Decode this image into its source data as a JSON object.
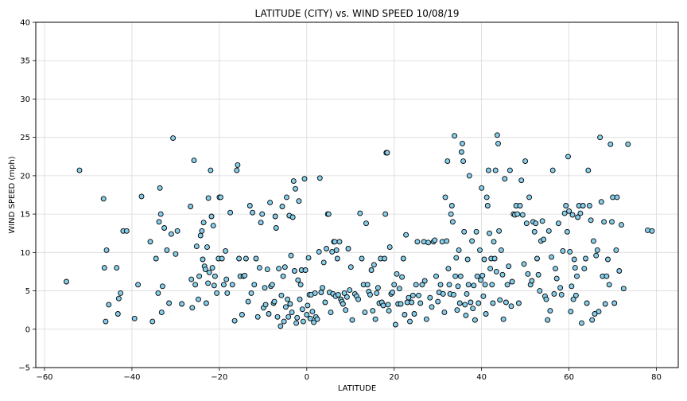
{
  "chart_data": {
    "type": "scatter",
    "title": "LATITUDE (CITY) vs. WIND SPEED 10/08/19",
    "xlabel": "LATITUDE",
    "ylabel": "WIND SPEED (mph)",
    "xlim": [
      -62,
      85
    ],
    "ylim": [
      -5,
      40
    ],
    "xticks": [
      -60,
      -40,
      -20,
      0,
      20,
      40,
      60,
      80
    ],
    "yticks": [
      -5,
      0,
      5,
      10,
      15,
      20,
      25,
      30,
      35,
      40
    ],
    "grid": true,
    "marker_fill": "#87ceeb",
    "marker_edge": "#000000",
    "points": [
      [
        -55,
        6.2
      ],
      [
        -52,
        20.7
      ],
      [
        -46.5,
        17
      ],
      [
        -46.3,
        8
      ],
      [
        -46,
        1
      ],
      [
        -45.8,
        10.3
      ],
      [
        -45.3,
        3.2
      ],
      [
        -43.5,
        8
      ],
      [
        -43.2,
        2
      ],
      [
        -43,
        4
      ],
      [
        -42.6,
        4.7
      ],
      [
        -42,
        12.8
      ],
      [
        -41.2,
        12.8
      ],
      [
        -39.4,
        1.4
      ],
      [
        -38.6,
        5.8
      ],
      [
        -37.8,
        17.3
      ],
      [
        -35.8,
        11.4
      ],
      [
        -35.3,
        1
      ],
      [
        -34.5,
        9.2
      ],
      [
        -34,
        4.7
      ],
      [
        -33.8,
        14
      ],
      [
        -33.6,
        18.4
      ],
      [
        -33.4,
        15
      ],
      [
        -33.2,
        2.2
      ],
      [
        -33,
        5.6
      ],
      [
        -32.6,
        13.2
      ],
      [
        -32,
        10.3
      ],
      [
        -31.5,
        3.4
      ],
      [
        -31,
        12.4
      ],
      [
        -30.6,
        24.9
      ],
      [
        -30,
        9.8
      ],
      [
        -29.6,
        12.8
      ],
      [
        -28.6,
        3.3
      ],
      [
        -26.6,
        16
      ],
      [
        -26.4,
        6.5
      ],
      [
        -26.2,
        2.8
      ],
      [
        -25.8,
        22
      ],
      [
        -25.5,
        5.8
      ],
      [
        -25.2,
        10.8
      ],
      [
        -24.8,
        3.9
      ],
      [
        -24.6,
        6.9
      ],
      [
        -24.3,
        12.2
      ],
      [
        -24,
        12.8
      ],
      [
        -23.8,
        9.1
      ],
      [
        -23.6,
        13.9
      ],
      [
        -23.4,
        8.2
      ],
      [
        -23.2,
        7.8
      ],
      [
        -23,
        3.4
      ],
      [
        -22.8,
        10.7
      ],
      [
        -22.6,
        6
      ],
      [
        -22.5,
        17.1
      ],
      [
        -22.3,
        7.4
      ],
      [
        -22,
        20.7
      ],
      [
        -21.8,
        14.7
      ],
      [
        -21.6,
        8
      ],
      [
        -21.4,
        13.5
      ],
      [
        -21.2,
        5.7
      ],
      [
        -21,
        6.9
      ],
      [
        -20.6,
        4.7
      ],
      [
        -20.2,
        9.2
      ],
      [
        -20,
        17.2
      ],
      [
        -19.7,
        17.2
      ],
      [
        -19.4,
        9.2
      ],
      [
        -19,
        5.8
      ],
      [
        -18.6,
        10.2
      ],
      [
        -18.4,
        6.5
      ],
      [
        -18.2,
        4.7
      ],
      [
        -17.5,
        15.2
      ],
      [
        -17,
        5.8
      ],
      [
        -16.5,
        1.1
      ],
      [
        -16,
        20.7
      ],
      [
        -15.8,
        21.4
      ],
      [
        -15.5,
        9.2
      ],
      [
        -15.2,
        6.9
      ],
      [
        -14.8,
        1.9
      ],
      [
        -14.5,
        6.9
      ],
      [
        -14.2,
        7
      ],
      [
        -13.9,
        9.2
      ],
      [
        -13.4,
        3.6
      ],
      [
        -13,
        16.1
      ],
      [
        -12.7,
        4.7
      ],
      [
        -12.4,
        15.2
      ],
      [
        -12,
        5.8
      ],
      [
        -11.6,
        9.2
      ],
      [
        -11.2,
        1.6
      ],
      [
        -10.8,
        8
      ],
      [
        -10.5,
        13.9
      ],
      [
        -10.2,
        15
      ],
      [
        -9.9,
        2.8
      ],
      [
        -9.6,
        5.4
      ],
      [
        -9.4,
        3.2
      ],
      [
        -9,
        7.8
      ],
      [
        -8.7,
        2
      ],
      [
        -8.4,
        16.5
      ],
      [
        -8.2,
        5.6
      ],
      [
        -7.9,
        5.8
      ],
      [
        -7.6,
        3.4
      ],
      [
        -7.4,
        3.6
      ],
      [
        -7.2,
        14.7
      ],
      [
        -7,
        13.2
      ],
      [
        -6.7,
        1.6
      ],
      [
        -6.4,
        7.9
      ],
      [
        -6,
        0.4
      ],
      [
        -5.8,
        4.4
      ],
      [
        -5.6,
        16
      ],
      [
        -5.4,
        6.9
      ],
      [
        -5.2,
        1
      ],
      [
        -5,
        8.1
      ],
      [
        -4.8,
        2.9
      ],
      [
        -4.6,
        17.2
      ],
      [
        -4.4,
        3.9
      ],
      [
        -4.2,
        1.6
      ],
      [
        -4,
        14.8
      ],
      [
        -3.8,
        3.3
      ],
      [
        -3.6,
        9.6
      ],
      [
        -3.4,
        2.2
      ],
      [
        -3.2,
        14.6
      ],
      [
        -3,
        19.3
      ],
      [
        -2.8,
        7.6
      ],
      [
        -2.6,
        18.3
      ],
      [
        -2.4,
        0.8
      ],
      [
        -2.2,
        1.5
      ],
      [
        -2,
        6.4
      ],
      [
        -1.8,
        16.7
      ],
      [
        -1.6,
        3.9
      ],
      [
        -1.4,
        5.8
      ],
      [
        -1.2,
        7.7
      ],
      [
        -1,
        2.6
      ],
      [
        -0.8,
        1
      ],
      [
        -0.5,
        19.6
      ],
      [
        -0.3,
        7.7
      ],
      [
        0,
        1.9
      ],
      [
        0.2,
        3.1
      ],
      [
        0.4,
        9.3
      ],
      [
        0.6,
        4.5
      ],
      [
        0.8,
        1.4
      ],
      [
        1,
        4.5
      ],
      [
        1.3,
        2.3
      ],
      [
        1.6,
        0.9
      ],
      [
        1.9,
        4.7
      ],
      [
        2.1,
        1.6
      ],
      [
        2.4,
        1.3
      ],
      [
        2.8,
        10.1
      ],
      [
        3,
        19.7
      ],
      [
        3.3,
        4.8
      ],
      [
        3.6,
        5.4
      ],
      [
        3.9,
        8.7
      ],
      [
        4.2,
        3.5
      ],
      [
        4.5,
        10.5
      ],
      [
        4.8,
        15
      ],
      [
        5,
        15
      ],
      [
        5.2,
        4.8
      ],
      [
        5.5,
        2.2
      ],
      [
        5.8,
        10.1
      ],
      [
        6,
        4.6
      ],
      [
        6.2,
        11.4
      ],
      [
        6.4,
        11.4
      ],
      [
        6.6,
        4.3
      ],
      [
        6.8,
        10.3
      ],
      [
        7,
        9.2
      ],
      [
        7.2,
        4.5
      ],
      [
        7.5,
        11.4
      ],
      [
        7.8,
        3.9
      ],
      [
        8,
        3.6
      ],
      [
        8.3,
        3.3
      ],
      [
        8.6,
        4.7
      ],
      [
        8.9,
        2.5
      ],
      [
        9.2,
        4.2
      ],
      [
        9.5,
        10.5
      ],
      [
        9.8,
        5.1
      ],
      [
        10.1,
        8.1
      ],
      [
        10.4,
        1.2
      ],
      [
        11,
        4.6
      ],
      [
        11.4,
        4.3
      ],
      [
        11.8,
        3.9
      ],
      [
        12.2,
        15.1
      ],
      [
        12.6,
        9.2
      ],
      [
        13,
        5.8
      ],
      [
        13.3,
        2.2
      ],
      [
        13.6,
        13.8
      ],
      [
        13.9,
        5.8
      ],
      [
        14.2,
        4.9
      ],
      [
        14.5,
        4.5
      ],
      [
        14.8,
        7.7
      ],
      [
        15.1,
        2.4
      ],
      [
        15.4,
        8.4
      ],
      [
        15.7,
        1.3
      ],
      [
        16,
        4.7
      ],
      [
        16.3,
        5.4
      ],
      [
        16.6,
        3.4
      ],
      [
        16.9,
        9.2
      ],
      [
        17.2,
        3.5
      ],
      [
        17.5,
        3.1
      ],
      [
        17.8,
        9.2
      ],
      [
        18,
        15
      ],
      [
        18.2,
        23
      ],
      [
        18.4,
        23
      ],
      [
        18.6,
        3.2
      ],
      [
        18.8,
        2.4
      ],
      [
        19,
        10.7
      ],
      [
        19.3,
        4.6
      ],
      [
        19.6,
        4.8
      ],
      [
        20,
        5.8
      ],
      [
        20.3,
        0.6
      ],
      [
        20.6,
        7.2
      ],
      [
        20.9,
        3.3
      ],
      [
        21.2,
        5.3
      ],
      [
        21.5,
        3.3
      ],
      [
        21.8,
        6.8
      ],
      [
        22.1,
        9.2
      ],
      [
        22.4,
        1.9
      ],
      [
        22.7,
        12.3
      ],
      [
        23,
        3.5
      ],
      [
        23.3,
        4.1
      ],
      [
        23.6,
        1
      ],
      [
        24,
        3.5
      ],
      [
        24.3,
        4.4
      ],
      [
        24.6,
        2
      ],
      [
        25,
        5.8
      ],
      [
        25.3,
        11.4
      ],
      [
        25.6,
        4.4
      ],
      [
        26,
        3.4
      ],
      [
        26.4,
        5.8
      ],
      [
        26.8,
        11.4
      ],
      [
        27,
        6.3
      ],
      [
        27.4,
        1.3
      ],
      [
        27.8,
        11.3
      ],
      [
        28.2,
        4.1
      ],
      [
        28.6,
        2.9
      ],
      [
        29,
        11.4
      ],
      [
        29.3,
        11.6
      ],
      [
        29.6,
        6.9
      ],
      [
        30,
        3.6
      ],
      [
        30.3,
        4.8
      ],
      [
        30.6,
        5.8
      ],
      [
        31,
        11.4
      ],
      [
        31.2,
        4.6
      ],
      [
        31.5,
        2.2
      ],
      [
        31.7,
        17.2
      ],
      [
        32,
        11.5
      ],
      [
        32.2,
        21.9
      ],
      [
        32.4,
        7.9
      ],
      [
        32.6,
        5.8
      ],
      [
        32.8,
        4.6
      ],
      [
        33,
        15
      ],
      [
        33.2,
        16.1
      ],
      [
        33.4,
        14
      ],
      [
        33.6,
        4.5
      ],
      [
        33.8,
        25.2
      ],
      [
        34,
        6.9
      ],
      [
        34.2,
        9.3
      ],
      [
        34.4,
        2.5
      ],
      [
        34.6,
        5.6
      ],
      [
        34.8,
        10.3
      ],
      [
        35,
        3.4
      ],
      [
        35.2,
        6.9
      ],
      [
        35.4,
        23.1
      ],
      [
        35.6,
        24.2
      ],
      [
        35.8,
        21.9
      ],
      [
        36,
        12.7
      ],
      [
        36.2,
        3.2
      ],
      [
        36.4,
        1.8
      ],
      [
        36.6,
        4.6
      ],
      [
        36.8,
        9.1
      ],
      [
        37,
        5.8
      ],
      [
        37.2,
        20
      ],
      [
        37.5,
        3.5
      ],
      [
        37.8,
        11.5
      ],
      [
        38,
        2.7
      ],
      [
        38.2,
        5.7
      ],
      [
        38.5,
        1.2
      ],
      [
        38.8,
        12.7
      ],
      [
        39,
        6.9
      ],
      [
        39.3,
        3.4
      ],
      [
        39.6,
        10.3
      ],
      [
        39.8,
        6.4
      ],
      [
        40,
        18.4
      ],
      [
        40.2,
        7
      ],
      [
        40.4,
        4.3
      ],
      [
        40.6,
        9.1
      ],
      [
        40.8,
        5.8
      ],
      [
        41,
        2
      ],
      [
        41.2,
        17.2
      ],
      [
        41.4,
        16.1
      ],
      [
        41.6,
        20.7
      ],
      [
        41.8,
        12.5
      ],
      [
        42,
        7.9
      ],
      [
        42.2,
        9.2
      ],
      [
        42.4,
        5.8
      ],
      [
        42.6,
        3.4
      ],
      [
        42.8,
        11.4
      ],
      [
        43,
        9.2
      ],
      [
        43.2,
        20.7
      ],
      [
        43.4,
        7.5
      ],
      [
        43.6,
        25.3
      ],
      [
        43.8,
        24.2
      ],
      [
        44,
        12.8
      ],
      [
        44.2,
        3.8
      ],
      [
        44.5,
        10.3
      ],
      [
        44.8,
        7.1
      ],
      [
        45,
        1.3
      ],
      [
        45.3,
        19.6
      ],
      [
        45.6,
        3.5
      ],
      [
        45.9,
        5.8
      ],
      [
        46.2,
        8.2
      ],
      [
        46.5,
        20.7
      ],
      [
        46.8,
        3
      ],
      [
        47,
        6.2
      ],
      [
        47.3,
        15
      ],
      [
        47.6,
        14.9
      ],
      [
        47.9,
        16.1
      ],
      [
        48.2,
        15
      ],
      [
        48.5,
        3.4
      ],
      [
        48.8,
        16.1
      ],
      [
        49.1,
        19.4
      ],
      [
        49.4,
        14.9
      ],
      [
        49.7,
        8.5
      ],
      [
        50,
        21.9
      ],
      [
        50.3,
        13.8
      ],
      [
        50.6,
        7.2
      ],
      [
        50.9,
        17.2
      ],
      [
        51.2,
        5.8
      ],
      [
        51.5,
        6.3
      ],
      [
        51.8,
        14
      ],
      [
        52.1,
        12.7
      ],
      [
        52.4,
        13.8
      ],
      [
        52.7,
        9.2
      ],
      [
        53,
        7.1
      ],
      [
        53.3,
        5
      ],
      [
        53.6,
        11.5
      ],
      [
        53.9,
        14.1
      ],
      [
        54.2,
        11.7
      ],
      [
        54.5,
        4.3
      ],
      [
        54.8,
        3.9
      ],
      [
        55.1,
        1.2
      ],
      [
        55.4,
        12.8
      ],
      [
        55.7,
        2.4
      ],
      [
        56,
        9.4
      ],
      [
        56.3,
        20.7
      ],
      [
        56.6,
        4.6
      ],
      [
        56.9,
        7.9
      ],
      [
        57.2,
        6.6
      ],
      [
        57.6,
        13.8
      ],
      [
        58,
        5.4
      ],
      [
        58.3,
        4.5
      ],
      [
        58.6,
        10.2
      ],
      [
        59,
        15.1
      ],
      [
        59.3,
        16.1
      ],
      [
        59.6,
        12.7
      ],
      [
        59.8,
        22.5
      ],
      [
        60,
        15.4
      ],
      [
        60.2,
        10.1
      ],
      [
        60.4,
        2.3
      ],
      [
        60.6,
        5.6
      ],
      [
        60.8,
        14.9
      ],
      [
        61,
        3.9
      ],
      [
        61.2,
        9.1
      ],
      [
        61.4,
        8
      ],
      [
        61.6,
        4.4
      ],
      [
        61.8,
        6.9
      ],
      [
        62,
        14.6
      ],
      [
        62.3,
        16.1
      ],
      [
        62.6,
        15.1
      ],
      [
        62.9,
        0.8
      ],
      [
        63.2,
        16.1
      ],
      [
        63.5,
        7.9
      ],
      [
        63.8,
        9.2
      ],
      [
        64.1,
        3.4
      ],
      [
        64.4,
        20.7
      ],
      [
        64.7,
        16.1
      ],
      [
        65,
        14.2
      ],
      [
        65.3,
        1.2
      ],
      [
        65.6,
        11.5
      ],
      [
        65.9,
        2
      ],
      [
        66.2,
        9.6
      ],
      [
        66.5,
        10.3
      ],
      [
        66.8,
        2.3
      ],
      [
        67.1,
        25
      ],
      [
        67.4,
        16.6
      ],
      [
        67.7,
        6.9
      ],
      [
        68,
        14
      ],
      [
        68.3,
        3.3
      ],
      [
        68.6,
        6.9
      ],
      [
        68.9,
        9.1
      ],
      [
        69.2,
        5.8
      ],
      [
        69.5,
        24.1
      ],
      [
        69.8,
        14
      ],
      [
        70,
        17.2
      ],
      [
        70.4,
        3.4
      ],
      [
        70.8,
        10.3
      ],
      [
        71,
        17.2
      ],
      [
        71.5,
        7.6
      ],
      [
        72,
        13.6
      ],
      [
        72.5,
        5.3
      ],
      [
        73.5,
        24.1
      ],
      [
        78,
        12.9
      ],
      [
        79,
        12.8
      ]
    ]
  }
}
